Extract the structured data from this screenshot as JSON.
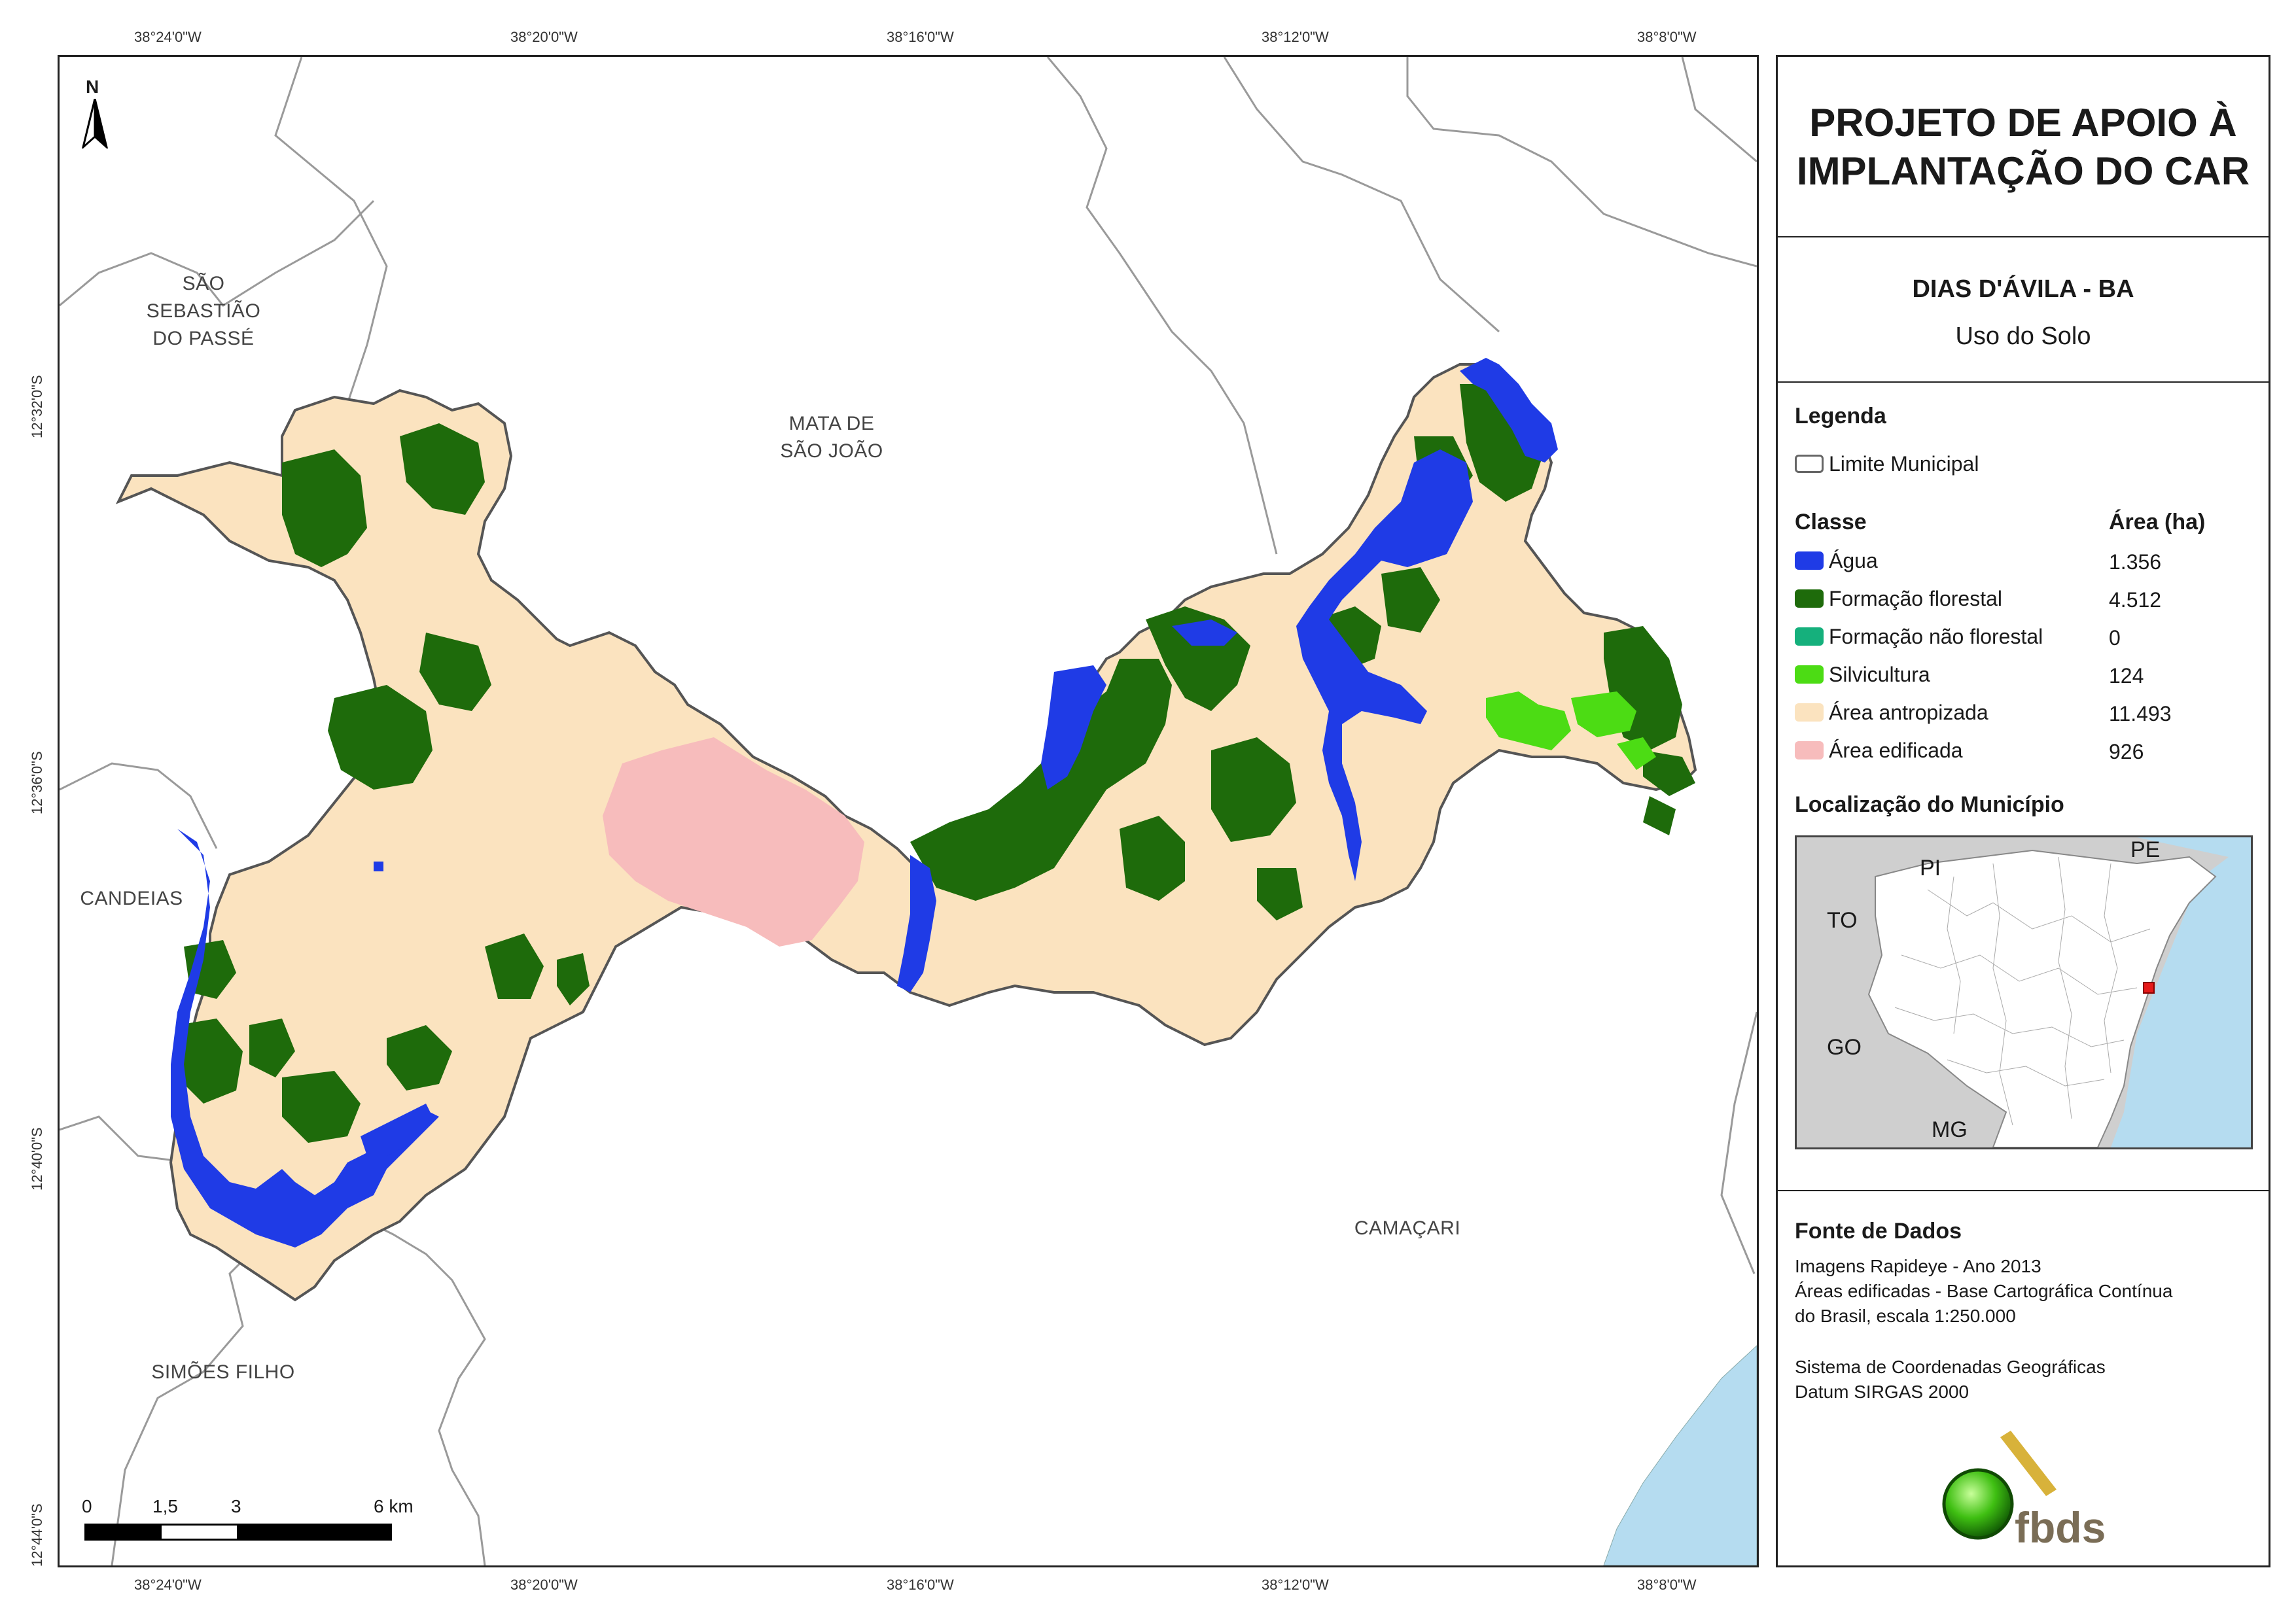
{
  "map": {
    "coord_top": [
      "38°24'0\"W",
      "38°20'0\"W",
      "38°16'0\"W",
      "38°12'0\"W",
      "38°8'0\"W"
    ],
    "coord_bottom": [
      "38°24'0\"W",
      "38°20'0\"W",
      "38°16'0\"W",
      "38°12'0\"W",
      "38°8'0\"W"
    ],
    "coord_left": [
      "12°32'0\"S",
      "12°36'0\"S",
      "12°40'0\"S",
      "12°44'0\"S"
    ],
    "north_label": "N",
    "places": {
      "sao_sebastiao": [
        "SÃO",
        "SEBASTIÃO",
        "DO PASSÉ"
      ],
      "mata_sao_joao": [
        "MATA DE",
        "SÃO JOÃO"
      ],
      "candeias": "CANDEIAS",
      "camacari": "CAMAÇARI",
      "simoes_filho": "SIMÕES FILHO"
    },
    "scale_labels": [
      "0",
      "1,5",
      "3",
      "6 km"
    ],
    "colors": {
      "agua": "#1f3be6",
      "floresta": "#1e6b0b",
      "nao_florestal": "#15b07c",
      "silvicultura": "#4cdc14",
      "antropizada": "#fbe3bf",
      "edificada": "#f7bcbc",
      "sea": "#b5dcf0"
    }
  },
  "panel": {
    "title_line1": "PROJETO DE APOIO À",
    "title_line2": "IMPLANTAÇÃO DO CAR",
    "municipality": "DIAS D'ÁVILA - BA",
    "subtitle": "Uso do Solo",
    "legend_title": "Legenda",
    "limite": "Limite Municipal",
    "classe_header": "Classe",
    "area_header": "Área (ha)",
    "classes": [
      {
        "label": "Água",
        "area": "1.356",
        "color": "#1f3be6"
      },
      {
        "label": "Formação florestal",
        "area": "4.512",
        "color": "#1e6b0b"
      },
      {
        "label": "Formação não florestal",
        "area": "0",
        "color": "#15b07c"
      },
      {
        "label": "Silvicultura",
        "area": "124",
        "color": "#4cdc14"
      },
      {
        "label": "Área antropizada",
        "area": "11.493",
        "color": "#fbe3bf"
      },
      {
        "label": "Área edificada",
        "area": "926",
        "color": "#f7bcbc"
      }
    ],
    "locator_title": "Localização do Município",
    "locator_states": [
      "PI",
      "PE",
      "TO",
      "GO",
      "MG"
    ],
    "source_title": "Fonte de Dados",
    "source_lines": [
      "Imagens Rapideye - Ano 2013",
      "Áreas edificadas - Base Cartográfica Contínua",
      "do Brasil, escala 1:250.000"
    ],
    "crs_lines": [
      "Sistema de Coordenadas Geográficas",
      "Datum SIRGAS 2000"
    ],
    "logo_text": "fbds"
  }
}
